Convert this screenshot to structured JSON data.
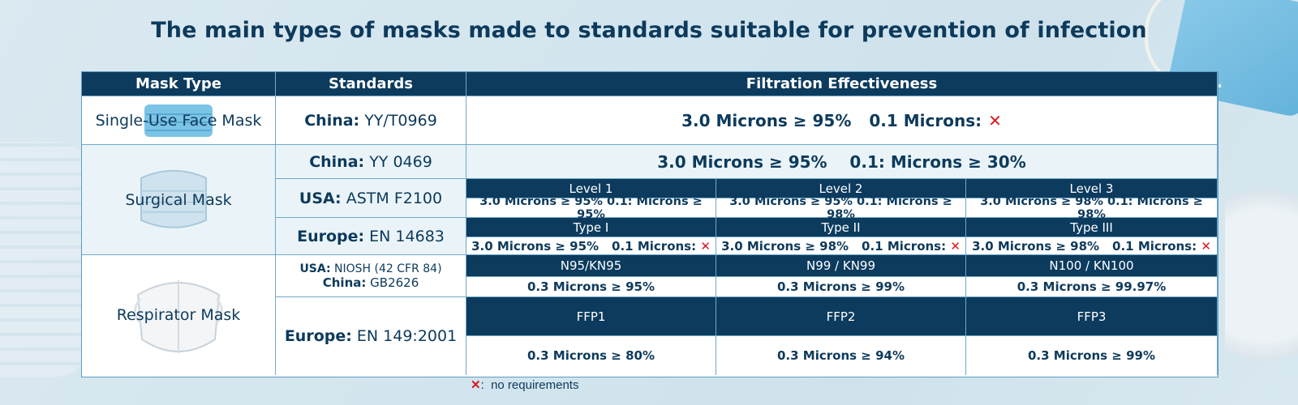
{
  "title": "The main types of masks made to standards suitable for prevention of infection",
  "header": {
    "mask_type": "Mask Type",
    "standards": "Standards",
    "filtration": "Filtration Effectiveness"
  },
  "rows": {
    "single_use": {
      "mask": "Single-Use Face Mask",
      "std_region": "China:",
      "std_code": "YY/T0969",
      "eff_a": "3.0 Microns ≥ 95%",
      "eff_b": "0.1 Microns:",
      "eff_b_mark": "✕"
    },
    "surgical": {
      "mask": "Surgical Mask",
      "china": {
        "region": "China:",
        "code": "YY 0469",
        "eff": "3.0 Microns ≥ 95%    0.1: Microns ≥ 30%"
      },
      "usa": {
        "region": "USA:",
        "code": "ASTM F2100",
        "levels": [
          "Level 1",
          "Level 2",
          "Level 3"
        ],
        "values": [
          "3.0 Microns ≥ 95% 0.1: Microns ≥ 95%",
          "3.0 Microns ≥ 95% 0.1: Microns ≥ 98%",
          "3.0 Microns ≥ 98% 0.1: Microns ≥ 98%"
        ]
      },
      "europe": {
        "region": "Europe:",
        "code": "EN 14683",
        "types": [
          "Type I",
          "Type II",
          "Type III"
        ],
        "values_a": [
          "3.0 Microns ≥ 95%",
          "3.0 Microns ≥ 98%",
          "3.0 Microns ≥ 98%"
        ],
        "values_b": "0.1 Microns:",
        "mark": "✕"
      }
    },
    "respirator": {
      "mask": "Respirator Mask",
      "usa_china": {
        "usa_region": "USA:",
        "usa_code": "NIOSH (42 CFR 84)",
        "china_region": "China:",
        "china_code": "GB2626",
        "classes": [
          "N95/KN95",
          "N99 / KN99",
          "N100 / KN100"
        ],
        "values": [
          "0.3 Microns ≥ 95%",
          "0.3 Microns ≥ 99%",
          "0.3 Microns ≥ 99.97%"
        ]
      },
      "europe": {
        "region": "Europe:",
        "code": "EN 149:2001",
        "classes": [
          "FFP1",
          "FFP2",
          "FFP3"
        ],
        "values": [
          "0.3 Microns ≥ 80%",
          "0.3 Microns ≥ 94%",
          "0.3 Microns ≥ 99%"
        ]
      }
    }
  },
  "footnote": {
    "mark": "✕",
    "text": ":  no requirements"
  },
  "colors": {
    "navy": "#0c3b5e",
    "x_red": "#d71920",
    "text": "#0d3a5c"
  }
}
